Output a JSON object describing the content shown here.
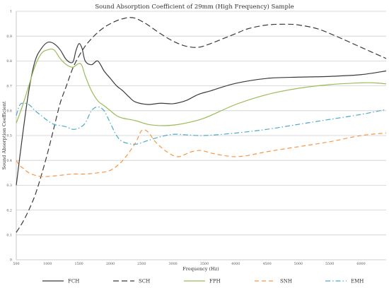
{
  "chart_data": {
    "type": "line",
    "title": "Sound Absorption Coefficient of 29mm (High Frequency) Sample",
    "xlabel": "Frequency (Hz)",
    "ylabel": "Sound Absorption Coefficient",
    "xlim": [
      500,
      6400
    ],
    "ylim": [
      0,
      1
    ],
    "xticks": [
      500,
      1000,
      1500,
      2000,
      2500,
      3000,
      3500,
      4000,
      4500,
      5000,
      5500,
      6000
    ],
    "yticks": [
      0,
      0.1,
      0.2,
      0.3,
      0.4,
      0.5,
      0.6,
      0.7,
      0.8,
      0.9,
      1
    ],
    "ytick_labels": [
      "0",
      "0.1",
      "0.2",
      "0.3",
      "0.4",
      "0.5",
      "0.6",
      "0.7",
      "0.8",
      "0.9",
      "1"
    ],
    "grid": "horizontal",
    "legend_position": "bottom",
    "series": [
      {
        "name": "FCH",
        "color": "#3a3a3a",
        "dash": "solid",
        "points": [
          [
            500,
            0.3
          ],
          [
            600,
            0.5
          ],
          [
            700,
            0.68
          ],
          [
            800,
            0.8
          ],
          [
            900,
            0.85
          ],
          [
            1000,
            0.875
          ],
          [
            1100,
            0.87
          ],
          [
            1200,
            0.845
          ],
          [
            1300,
            0.805
          ],
          [
            1400,
            0.795
          ],
          [
            1450,
            0.84
          ],
          [
            1500,
            0.87
          ],
          [
            1550,
            0.85
          ],
          [
            1600,
            0.8
          ],
          [
            1700,
            0.785
          ],
          [
            1800,
            0.8
          ],
          [
            1900,
            0.76
          ],
          [
            2000,
            0.73
          ],
          [
            2100,
            0.7
          ],
          [
            2200,
            0.68
          ],
          [
            2300,
            0.655
          ],
          [
            2400,
            0.635
          ],
          [
            2600,
            0.625
          ],
          [
            2800,
            0.63
          ],
          [
            3000,
            0.628
          ],
          [
            3200,
            0.64
          ],
          [
            3400,
            0.665
          ],
          [
            3600,
            0.68
          ],
          [
            4000,
            0.71
          ],
          [
            4500,
            0.73
          ],
          [
            5000,
            0.735
          ],
          [
            5500,
            0.738
          ],
          [
            6000,
            0.745
          ],
          [
            6400,
            0.76
          ]
        ]
      },
      {
        "name": "SCH",
        "color": "#3a3a3a",
        "dash": "long",
        "points": [
          [
            500,
            0.11
          ],
          [
            600,
            0.15
          ],
          [
            700,
            0.2
          ],
          [
            800,
            0.26
          ],
          [
            900,
            0.34
          ],
          [
            1000,
            0.43
          ],
          [
            1100,
            0.53
          ],
          [
            1200,
            0.63
          ],
          [
            1300,
            0.7
          ],
          [
            1400,
            0.77
          ],
          [
            1500,
            0.82
          ],
          [
            1600,
            0.86
          ],
          [
            1700,
            0.89
          ],
          [
            1800,
            0.915
          ],
          [
            1900,
            0.935
          ],
          [
            2000,
            0.95
          ],
          [
            2100,
            0.962
          ],
          [
            2200,
            0.97
          ],
          [
            2300,
            0.975
          ],
          [
            2400,
            0.972
          ],
          [
            2500,
            0.96
          ],
          [
            2600,
            0.945
          ],
          [
            2800,
            0.91
          ],
          [
            3000,
            0.88
          ],
          [
            3200,
            0.86
          ],
          [
            3400,
            0.855
          ],
          [
            3600,
            0.87
          ],
          [
            3800,
            0.89
          ],
          [
            4000,
            0.91
          ],
          [
            4200,
            0.93
          ],
          [
            4500,
            0.945
          ],
          [
            4800,
            0.948
          ],
          [
            5000,
            0.945
          ],
          [
            5300,
            0.93
          ],
          [
            5600,
            0.9
          ],
          [
            6000,
            0.855
          ],
          [
            6400,
            0.81
          ]
        ]
      },
      {
        "name": "FPH",
        "color": "#9bbb59",
        "dash": "solid",
        "points": [
          [
            500,
            0.55
          ],
          [
            600,
            0.62
          ],
          [
            700,
            0.7
          ],
          [
            800,
            0.78
          ],
          [
            900,
            0.83
          ],
          [
            1000,
            0.845
          ],
          [
            1100,
            0.845
          ],
          [
            1200,
            0.81
          ],
          [
            1300,
            0.785
          ],
          [
            1400,
            0.775
          ],
          [
            1500,
            0.79
          ],
          [
            1550,
            0.78
          ],
          [
            1600,
            0.74
          ],
          [
            1700,
            0.68
          ],
          [
            1800,
            0.64
          ],
          [
            1900,
            0.62
          ],
          [
            2000,
            0.6
          ],
          [
            2100,
            0.58
          ],
          [
            2200,
            0.57
          ],
          [
            2400,
            0.56
          ],
          [
            2600,
            0.545
          ],
          [
            2800,
            0.54
          ],
          [
            3000,
            0.542
          ],
          [
            3200,
            0.55
          ],
          [
            3500,
            0.57
          ],
          [
            4000,
            0.625
          ],
          [
            4500,
            0.665
          ],
          [
            5000,
            0.69
          ],
          [
            5500,
            0.705
          ],
          [
            6000,
            0.712
          ],
          [
            6200,
            0.712
          ],
          [
            6400,
            0.708
          ]
        ]
      },
      {
        "name": "SNH",
        "color": "#f79646",
        "dash": "dash",
        "points": [
          [
            500,
            0.4
          ],
          [
            550,
            0.38
          ],
          [
            600,
            0.37
          ],
          [
            700,
            0.35
          ],
          [
            800,
            0.34
          ],
          [
            900,
            0.335
          ],
          [
            1000,
            0.335
          ],
          [
            1200,
            0.34
          ],
          [
            1400,
            0.345
          ],
          [
            1600,
            0.345
          ],
          [
            1800,
            0.35
          ],
          [
            2000,
            0.36
          ],
          [
            2200,
            0.4
          ],
          [
            2400,
            0.47
          ],
          [
            2500,
            0.52
          ],
          [
            2600,
            0.515
          ],
          [
            2700,
            0.48
          ],
          [
            2800,
            0.455
          ],
          [
            2900,
            0.435
          ],
          [
            3000,
            0.42
          ],
          [
            3100,
            0.415
          ],
          [
            3200,
            0.425
          ],
          [
            3300,
            0.435
          ],
          [
            3450,
            0.44
          ],
          [
            3600,
            0.43
          ],
          [
            3800,
            0.42
          ],
          [
            4000,
            0.415
          ],
          [
            4200,
            0.42
          ],
          [
            4500,
            0.435
          ],
          [
            5000,
            0.455
          ],
          [
            5500,
            0.475
          ],
          [
            6000,
            0.5
          ],
          [
            6400,
            0.51
          ]
        ]
      },
      {
        "name": "EMH",
        "color": "#4bacc6",
        "dash": "dashdot",
        "points": [
          [
            500,
            0.58
          ],
          [
            550,
            0.62
          ],
          [
            600,
            0.63
          ],
          [
            700,
            0.625
          ],
          [
            800,
            0.6
          ],
          [
            900,
            0.58
          ],
          [
            1000,
            0.56
          ],
          [
            1100,
            0.545
          ],
          [
            1200,
            0.54
          ],
          [
            1300,
            0.535
          ],
          [
            1400,
            0.525
          ],
          [
            1500,
            0.53
          ],
          [
            1600,
            0.55
          ],
          [
            1700,
            0.6
          ],
          [
            1800,
            0.615
          ],
          [
            1900,
            0.6
          ],
          [
            2000,
            0.55
          ],
          [
            2100,
            0.5
          ],
          [
            2200,
            0.475
          ],
          [
            2400,
            0.465
          ],
          [
            2600,
            0.48
          ],
          [
            2800,
            0.495
          ],
          [
            3000,
            0.505
          ],
          [
            3200,
            0.503
          ],
          [
            3500,
            0.5
          ],
          [
            4000,
            0.51
          ],
          [
            4500,
            0.525
          ],
          [
            5000,
            0.545
          ],
          [
            5500,
            0.565
          ],
          [
            6000,
            0.585
          ],
          [
            6400,
            0.605
          ]
        ]
      }
    ]
  }
}
